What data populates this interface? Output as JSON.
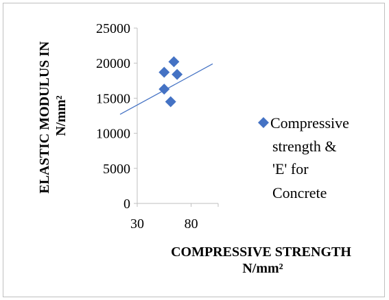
{
  "chart_data": {
    "type": "scatter",
    "title": "",
    "xlabel_lines": [
      "COMPRESSIVE STRENGTH",
      "N/mm²"
    ],
    "ylabel_lines": [
      "ELASTIC MODULUS IN",
      "N/mm²"
    ],
    "xlim": [
      30,
      80
    ],
    "ylim": [
      0,
      25000
    ],
    "x_ticks": [
      "30",
      "80"
    ],
    "y_ticks": [
      "0",
      "5000",
      "10000",
      "15000",
      "20000",
      "25000"
    ],
    "grid": false,
    "legend_position": "right",
    "series": [
      {
        "name_lines": [
          "Compressive",
          "strength &",
          "'E' for",
          "Concrete"
        ],
        "color": "#4472C4",
        "marker": "diamond",
        "points": [
          {
            "x": 55,
            "y": 18700
          },
          {
            "x": 55,
            "y": 16300
          },
          {
            "x": 61,
            "y": 14500
          },
          {
            "x": 64,
            "y": 20200
          },
          {
            "x": 67,
            "y": 18400
          }
        ]
      }
    ],
    "trendline": {
      "type": "linear",
      "color": "#4472C4",
      "x_range": [
        30,
        100
      ],
      "y_range": [
        12700,
        19900
      ]
    }
  }
}
